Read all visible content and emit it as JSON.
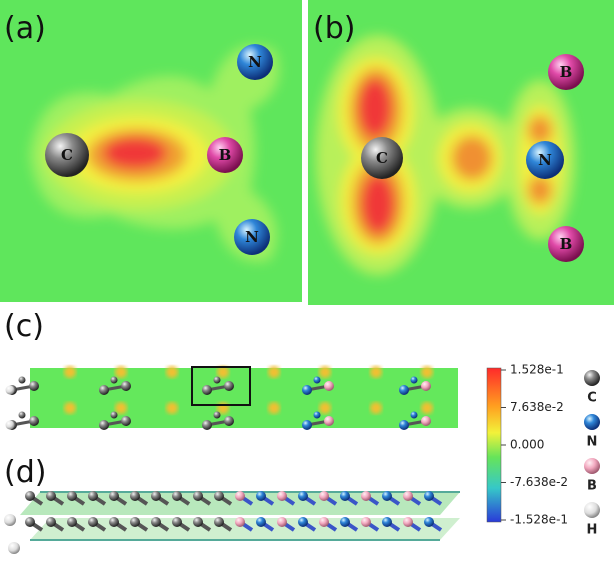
{
  "panels": [
    {
      "label": "(a)",
      "atoms": [
        "C",
        "B",
        "N",
        "N"
      ]
    },
    {
      "label": "(b)",
      "atoms": [
        "C",
        "N",
        "B",
        "B"
      ]
    },
    {
      "label": "(c)"
    },
    {
      "label": "(d)"
    }
  ],
  "colorbar": {
    "ticks": [
      "1.528e-1",
      "7.638e-2",
      "0.000",
      "-7.638e-2",
      "-1.528e-1"
    ]
  },
  "legend": [
    "C",
    "N",
    "B",
    "H"
  ]
}
